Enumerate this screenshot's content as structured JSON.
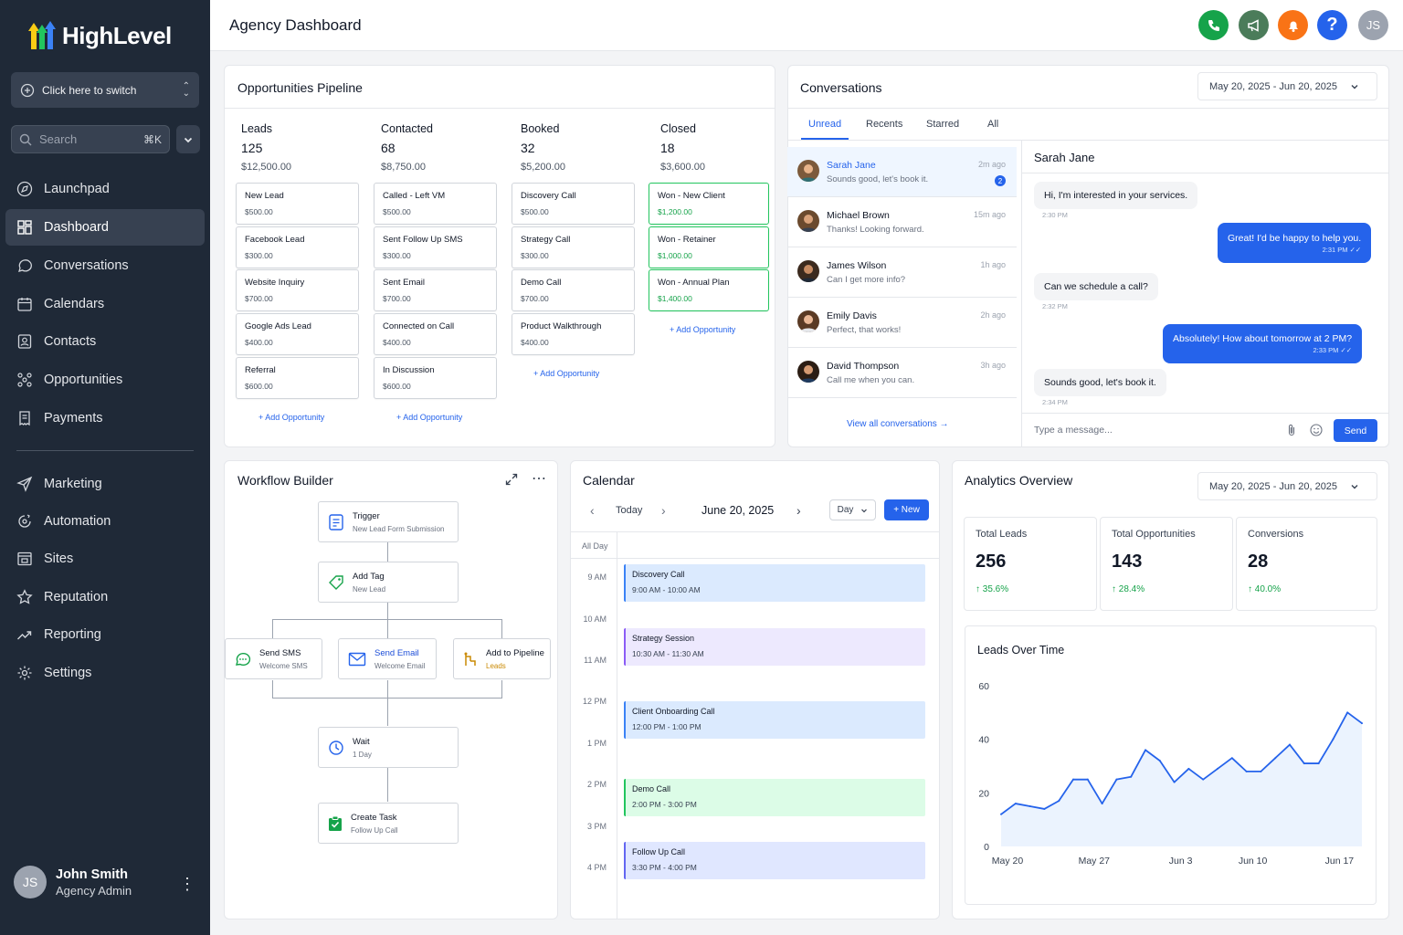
{
  "brand": {
    "name": "HighLevel"
  },
  "sidebar": {
    "switcher_label": "Click here to switch",
    "search_placeholder": "Search",
    "search_shortcut": "⌘K",
    "items": [
      {
        "label": "Launchpad",
        "icon": "rocket-icon"
      },
      {
        "label": "Dashboard",
        "icon": "grid-icon",
        "active": true
      },
      {
        "label": "Conversations",
        "icon": "chat-icon"
      },
      {
        "label": "Calendars",
        "icon": "calendar-icon"
      },
      {
        "label": "Contacts",
        "icon": "contacts-icon"
      },
      {
        "label": "Opportunities",
        "icon": "network-icon"
      },
      {
        "label": "Payments",
        "icon": "receipt-icon"
      },
      {
        "label": "Marketing",
        "icon": "send-icon"
      },
      {
        "label": "Automation",
        "icon": "automation-icon"
      },
      {
        "label": "Sites",
        "icon": "sites-icon"
      },
      {
        "label": "Reputation",
        "icon": "star-icon"
      },
      {
        "label": "Reporting",
        "icon": "trend-icon"
      },
      {
        "label": "Settings",
        "icon": "gear-icon"
      }
    ],
    "user": {
      "initials": "JS",
      "name": "John Smith",
      "role": "Agency Admin"
    }
  },
  "header": {
    "title": "Agency Dashboard",
    "avatar_initials": "JS",
    "colors": {
      "phone": "#16a34a",
      "announce": "#15803d",
      "bell": "#f97316",
      "help": "#2563eb",
      "avatar": "#9ca3af"
    }
  },
  "pipeline": {
    "title": "Opportunities Pipeline",
    "add_label": "+ Add Opportunity",
    "columns": [
      {
        "name": "Leads",
        "count": "125",
        "amount": "$12,500.00",
        "cards": [
          {
            "t": "New Lead",
            "v": "$500.00"
          },
          {
            "t": "Facebook Lead",
            "v": "$300.00"
          },
          {
            "t": "Website Inquiry",
            "v": "$700.00"
          },
          {
            "t": "Google Ads Lead",
            "v": "$400.00"
          },
          {
            "t": "Referral",
            "v": "$600.00"
          }
        ]
      },
      {
        "name": "Contacted",
        "count": "68",
        "amount": "$8,750.00",
        "cards": [
          {
            "t": "Called - Left VM",
            "v": "$500.00"
          },
          {
            "t": "Sent Follow Up SMS",
            "v": "$300.00"
          },
          {
            "t": "Sent Email",
            "v": "$700.00"
          },
          {
            "t": "Connected on Call",
            "v": "$400.00"
          },
          {
            "t": "In Discussion",
            "v": "$600.00"
          }
        ]
      },
      {
        "name": "Booked",
        "count": "32",
        "amount": "$5,200.00",
        "cards": [
          {
            "t": "Discovery Call",
            "v": "$500.00"
          },
          {
            "t": "Strategy Call",
            "v": "$300.00"
          },
          {
            "t": "Demo Call",
            "v": "$700.00"
          },
          {
            "t": "Product Walkthrough",
            "v": "$400.00"
          }
        ]
      },
      {
        "name": "Closed",
        "count": "18",
        "amount": "$3,600.00",
        "cards": [
          {
            "t": "Won - New Client",
            "v": "$1,200.00"
          },
          {
            "t": "Won - Retainer",
            "v": "$1,000.00"
          },
          {
            "t": "Won - Annual Plan",
            "v": "$1,400.00"
          }
        ]
      }
    ]
  },
  "conversations": {
    "title": "Conversations",
    "date_range": "May 20, 2025 - Jun 20, 2025",
    "tabs": [
      "Unread",
      "Recents",
      "Starred",
      "All"
    ],
    "list": [
      {
        "name": "Sarah Jane",
        "preview": "Sounds good, let's book it.",
        "time": "2m ago",
        "badge": "2"
      },
      {
        "name": "Michael Brown",
        "preview": "Thanks! Looking forward.",
        "time": "15m ago"
      },
      {
        "name": "James Wilson",
        "preview": "Can I get more info?",
        "time": "1h ago"
      },
      {
        "name": "Emily Davis",
        "preview": "Perfect, that works!",
        "time": "2h ago"
      },
      {
        "name": "David Thompson",
        "preview": "Call me when you can.",
        "time": "3h ago"
      }
    ],
    "view_all": "View all conversations →",
    "thread": {
      "contact": "Sarah Jane",
      "messages": [
        {
          "dir": "in",
          "text": "Hi, I'm interested in your services.",
          "time": "2:30 PM"
        },
        {
          "dir": "out",
          "text": "Great! I'd be happy to help you.",
          "time": "2:31 PM ✓✓"
        },
        {
          "dir": "in",
          "text": "Can we schedule a call?",
          "time": "2:32 PM"
        },
        {
          "dir": "out",
          "text": "Absolutely! How about tomorrow at 2 PM?",
          "time": "2:33 PM ✓✓"
        },
        {
          "dir": "in",
          "text": "Sounds good, let's book it.",
          "time": "2:34 PM"
        }
      ],
      "input_placeholder": "Type a message...",
      "send_label": "Send"
    }
  },
  "workflow": {
    "title": "Workflow Builder",
    "nodes": {
      "trigger": {
        "t": "Trigger",
        "s": "New Lead Form Submission",
        "icon": "form-icon"
      },
      "tag": {
        "t": "Add Tag",
        "s": "New Lead",
        "icon": "tag-icon"
      },
      "sms": {
        "t": "Send SMS",
        "s": "Welcome SMS",
        "icon": "sms-icon"
      },
      "email": {
        "t": "Send Email",
        "s": "Welcome Email",
        "icon": "email-icon"
      },
      "pipeline": {
        "t": "Add to Pipeline",
        "s": "Leads",
        "icon": "pipeline-icon"
      },
      "wait": {
        "t": "Wait",
        "s": "1 Day",
        "icon": "clock-icon"
      },
      "task": {
        "t": "Create Task",
        "s": "Follow Up Call",
        "icon": "task-icon"
      }
    }
  },
  "calendar": {
    "title": "Calendar",
    "today_label": "Today",
    "date": "June 20, 2025",
    "view": "Day",
    "new_label": "+ New",
    "all_day": "All Day",
    "hours": [
      "9 AM",
      "10 AM",
      "11 AM",
      "12 PM",
      "1 PM",
      "2 PM",
      "3 PM",
      "4 PM"
    ],
    "events": [
      {
        "title": "Discovery Call",
        "time": "9:00 AM - 10:00 AM",
        "color": "#dbeafe",
        "border": "#3b82f6"
      },
      {
        "title": "Strategy Session",
        "time": "10:30 AM - 11:30 AM",
        "color": "#ede9fe",
        "border": "#8b5cf6"
      },
      {
        "title": "Client Onboarding Call",
        "time": "12:00 PM - 1:00 PM",
        "color": "#dbeafe",
        "border": "#3b82f6"
      },
      {
        "title": "Demo Call",
        "time": "2:00 PM - 3:00 PM",
        "color": "#dcfce7",
        "border": "#22c55e"
      },
      {
        "title": "Follow Up Call",
        "time": "3:30 PM - 4:00 PM",
        "color": "#e0e7ff",
        "border": "#6366f1"
      }
    ]
  },
  "analytics": {
    "title": "Analytics Overview",
    "date_range": "May 20, 2025 - Jun 20, 2025",
    "stats": [
      {
        "label": "Total Leads",
        "value": "256",
        "change": "↑ 35.6%"
      },
      {
        "label": "Total Opportunities",
        "value": "143",
        "change": "↑ 28.4%"
      },
      {
        "label": "Conversions",
        "value": "28",
        "change": "↑ 40.0%"
      }
    ],
    "chart_data": {
      "type": "area",
      "title": "Leads Over Time",
      "xlabel": "",
      "ylabel": "",
      "ylim": [
        0,
        60
      ],
      "yticks": [
        "0",
        "20",
        "40",
        "60"
      ],
      "xticks": [
        "May 20",
        "May 27",
        "Jun 3",
        "Jun 10",
        "Jun 17"
      ],
      "grid": false,
      "color": "#2563eb",
      "series": [
        {
          "values": [
            12,
            16,
            15,
            14,
            17,
            25,
            25,
            16,
            25,
            26,
            36,
            32,
            24,
            29,
            25,
            29,
            33,
            28,
            28,
            33,
            38,
            31,
            31,
            40,
            50,
            46
          ]
        }
      ]
    }
  }
}
